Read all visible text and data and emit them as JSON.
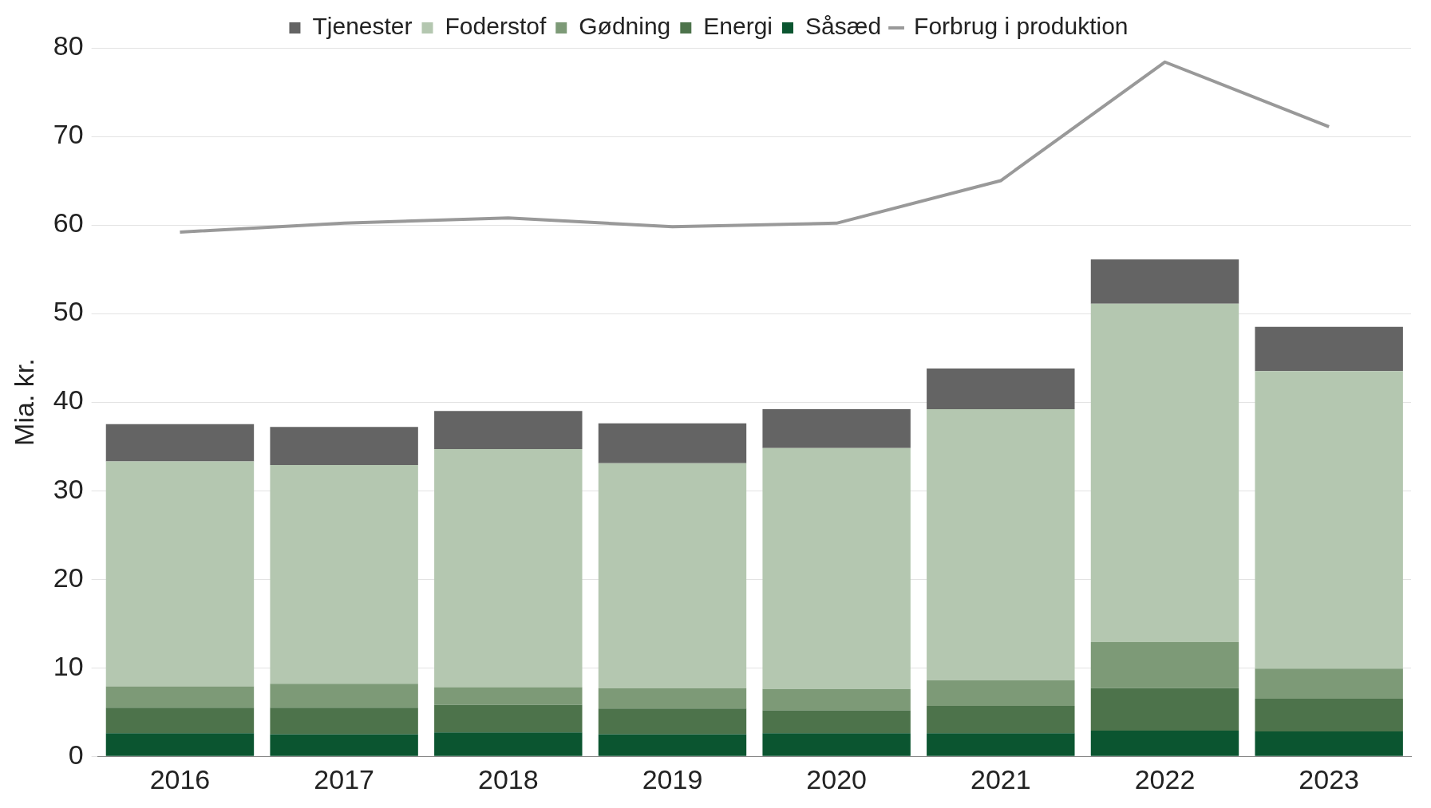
{
  "chart_data": {
    "type": "bar",
    "ylabel": "Mia. kr.",
    "categories": [
      "2016",
      "2017",
      "2018",
      "2019",
      "2020",
      "2021",
      "2022",
      "2023"
    ],
    "stacked": true,
    "ylim": [
      0,
      80
    ],
    "yticks": [
      0,
      10,
      20,
      30,
      40,
      50,
      60,
      70,
      80
    ],
    "grid": "y",
    "legend": "top",
    "series": [
      {
        "name": "Såsæd",
        "color": "#0b5530",
        "values": [
          2.6,
          2.5,
          2.7,
          2.5,
          2.6,
          2.6,
          2.9,
          2.8
        ]
      },
      {
        "name": "Energi",
        "color": "#4d734b",
        "values": [
          2.9,
          3.0,
          3.1,
          2.9,
          2.6,
          3.1,
          4.8,
          3.7
        ]
      },
      {
        "name": "Gødning",
        "color": "#7d9a77",
        "values": [
          2.4,
          2.7,
          2.0,
          2.3,
          2.4,
          2.9,
          5.2,
          3.4
        ]
      },
      {
        "name": "Foderstof",
        "color": "#b4c7b0",
        "values": [
          25.4,
          24.7,
          26.9,
          25.4,
          27.2,
          30.6,
          38.2,
          33.6
        ]
      },
      {
        "name": "Tjenester",
        "color": "#646464",
        "values": [
          4.2,
          4.3,
          4.3,
          4.5,
          4.4,
          4.6,
          5.0,
          5.0
        ]
      },
      {
        "name": "Forbrug i produktion",
        "type": "line",
        "color": "#999999",
        "values": [
          59.2,
          60.2,
          60.8,
          59.8,
          60.2,
          65.0,
          78.4,
          71.1
        ]
      }
    ]
  }
}
